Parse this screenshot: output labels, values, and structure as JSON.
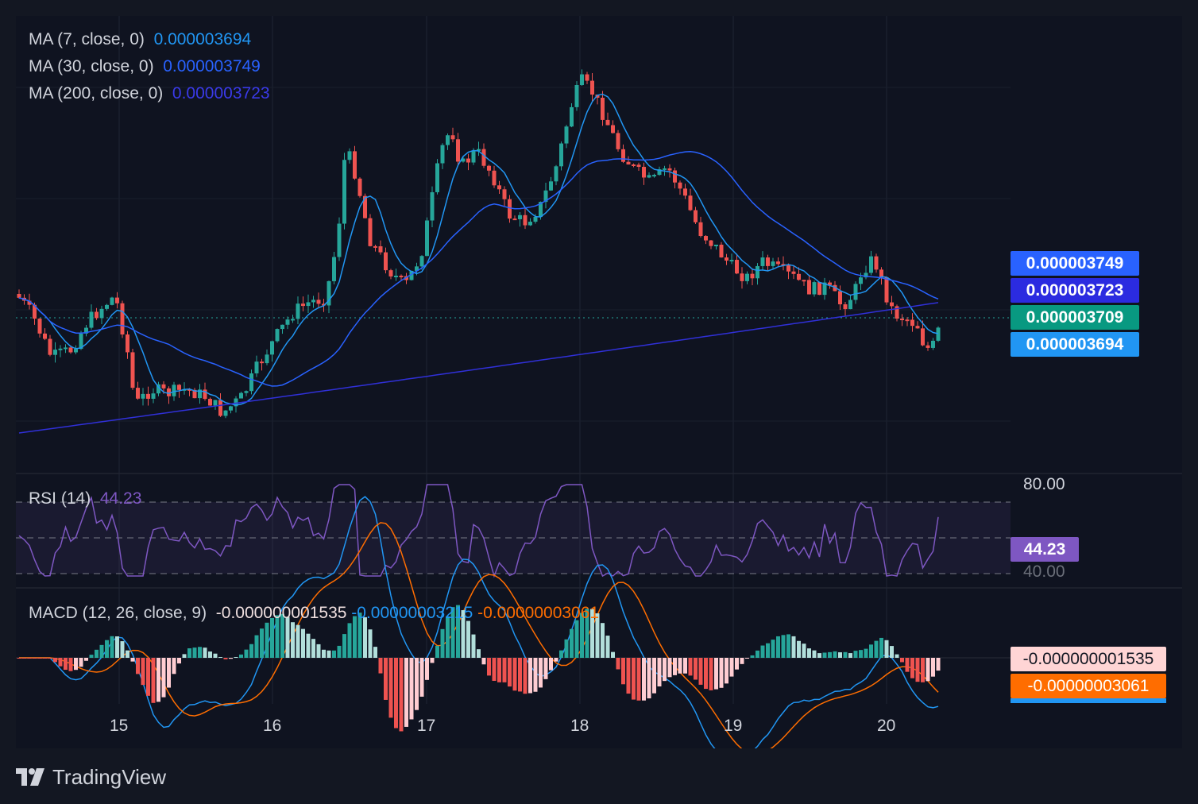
{
  "brand": {
    "name": "TradingView",
    "icon": "tradingview-logo-icon"
  },
  "legends": {
    "ma7": {
      "label": "MA (7, close, 0)",
      "value": "0.000003694",
      "color": "#2196f3"
    },
    "ma30": {
      "label": "MA (30, close, 0)",
      "value": "0.000003749",
      "color": "#2962ff"
    },
    "ma200": {
      "label": "MA (200, close, 0)",
      "value": "0.000003723",
      "color": "#3030d8"
    },
    "rsi": {
      "label": "RSI (14)",
      "value": "44.23",
      "color": "#7e57c2"
    },
    "macd": {
      "label": "MACD (12, 26, close, 9)",
      "hist": "-0.000000001535",
      "macd": "-0.00000003215",
      "signal": "-0.00000003061"
    }
  },
  "price_badges": [
    {
      "text": "0.000003749",
      "color": "#2962ff",
      "key": "ma30"
    },
    {
      "text": "0.000003723",
      "color": "#2b2be0",
      "key": "ma200"
    },
    {
      "text": "0.000003709",
      "color": "#089981",
      "key": "last"
    },
    {
      "text": "0.000003694",
      "color": "#2196f3",
      "key": "ma7"
    }
  ],
  "rsi_axis": {
    "upper": "80.00",
    "lower": "40.00",
    "badge": "44.23"
  },
  "macd_badges": {
    "hist": "-0.000000001535",
    "signal": "-0.00000003061"
  },
  "x_axis": {
    "ticks": [
      "15",
      "16",
      "17",
      "18",
      "19",
      "20"
    ]
  },
  "chart_data": {
    "type": "candlestick",
    "price_levels": {
      "ma30": 3.749e-06,
      "ma200": 3.723e-06,
      "last_close": 3.709e-06,
      "ma7": 3.694e-06
    },
    "rsi": {
      "length": 14,
      "last": 44.23,
      "upper_band": 80,
      "lower_band": 40
    },
    "macd": {
      "fast": 12,
      "slow": 26,
      "signal_length": 9,
      "histogram": -1.535e-09,
      "macd": -3.215e-08,
      "signal": -3.061e-08
    },
    "colors": {
      "up": "#26a69a",
      "down": "#ef5350",
      "ma7": "#2196f3",
      "ma30": "#2962ff",
      "ma200": "#3030d8",
      "rsi": "#7e57c2",
      "macd_line": "#2196f3",
      "signal_line": "#ff6d00"
    },
    "x_labels": [
      "15",
      "16",
      "17",
      "18",
      "19",
      "20"
    ]
  }
}
